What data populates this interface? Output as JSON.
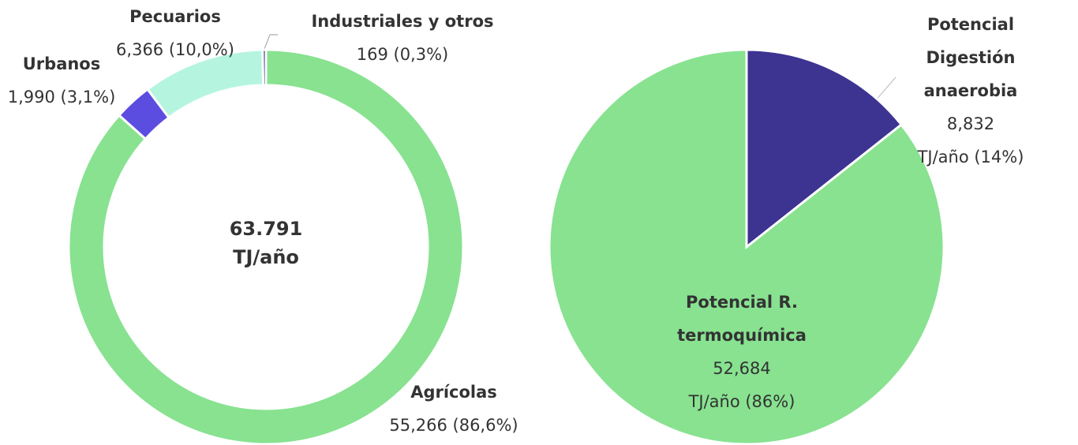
{
  "chart_data": [
    {
      "type": "donut",
      "categories": [
        "Agrícolas",
        "Urbanos",
        "Pecuarios",
        "Industriales y otros"
      ],
      "values": [
        55266,
        1990,
        6366,
        169
      ],
      "value_labels": [
        "55,266 (86,6%)",
        "1,990 (3,1%)",
        "6,366 (10,0%)",
        "169 (0,3%)"
      ],
      "colors": [
        "#88e290",
        "#5b4de0",
        "#b5f5df",
        "#2e2a70"
      ],
      "center_label": "63.791\nTJ/año"
    },
    {
      "type": "pie",
      "categories": [
        "Potencial Digestión\nanaerobia",
        "Potencial R.\ntermoquímica"
      ],
      "values": [
        8832,
        52684
      ],
      "value_labels": [
        "8,832\nTJ/año (14%)",
        "52,684\nTJ/año (86%)"
      ],
      "colors": [
        "#3d3391",
        "#88e290"
      ]
    }
  ]
}
